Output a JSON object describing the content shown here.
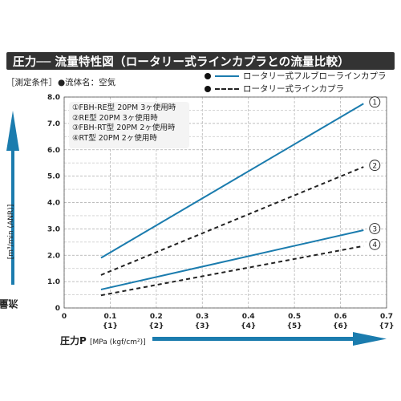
{
  "title": "圧力── 流量特性図（ロータリー式ラインカプラとの流量比較）",
  "condition_label": "［測定条件］",
  "fluid_label": "●流体名：空気",
  "legend": [
    {
      "label": "ロータリー式フルブローラインカプラ",
      "style": "solid",
      "color": "#1b7cae"
    },
    {
      "label": "ロータリー式ラインカプラ",
      "style": "dashed",
      "color": "#222222"
    }
  ],
  "notes": [
    "①FBH-RE型  20PM 3ヶ使用時",
    "②RE型  20PM 3ヶ使用時",
    "③FBH-RT型  20PM 2ヶ使用時",
    "④RT型  20PM 2ヶ使用時"
  ],
  "y_axis": {
    "label": "流量Q",
    "unit": "[m³/min (ANR)]"
  },
  "x_axis": {
    "label": "圧力P",
    "unit": "[MPa (kgf/cm²)]"
  },
  "chart_data": {
    "type": "line",
    "xlim": [
      0,
      0.7
    ],
    "ylim": [
      0,
      8.0
    ],
    "x_ticks": [
      "0",
      "0.1",
      "0.2",
      "0.3",
      "0.4",
      "0.5",
      "0.6",
      "0.7"
    ],
    "x_ticks_secondary": [
      "",
      "{1}",
      "{2}",
      "{3}",
      "{4}",
      "{5}",
      "{6}",
      "{7}"
    ],
    "y_ticks": [
      "0",
      "1.0",
      "2.0",
      "3.0",
      "4.0",
      "5.0",
      "6.0",
      "7.0",
      "8.0"
    ],
    "grid": true,
    "series": [
      {
        "name": "①",
        "style": "solid",
        "color": "#1b7cae",
        "x": [
          0.08,
          0.65
        ],
        "y": [
          1.9,
          7.75
        ]
      },
      {
        "name": "②",
        "style": "dashed",
        "color": "#222222",
        "x": [
          0.08,
          0.65
        ],
        "y": [
          1.25,
          5.35
        ]
      },
      {
        "name": "③",
        "style": "solid",
        "color": "#1b7cae",
        "x": [
          0.08,
          0.65
        ],
        "y": [
          0.7,
          2.95
        ]
      },
      {
        "name": "④",
        "style": "dashed",
        "color": "#222222",
        "x": [
          0.08,
          0.65
        ],
        "y": [
          0.48,
          2.35
        ]
      }
    ]
  }
}
